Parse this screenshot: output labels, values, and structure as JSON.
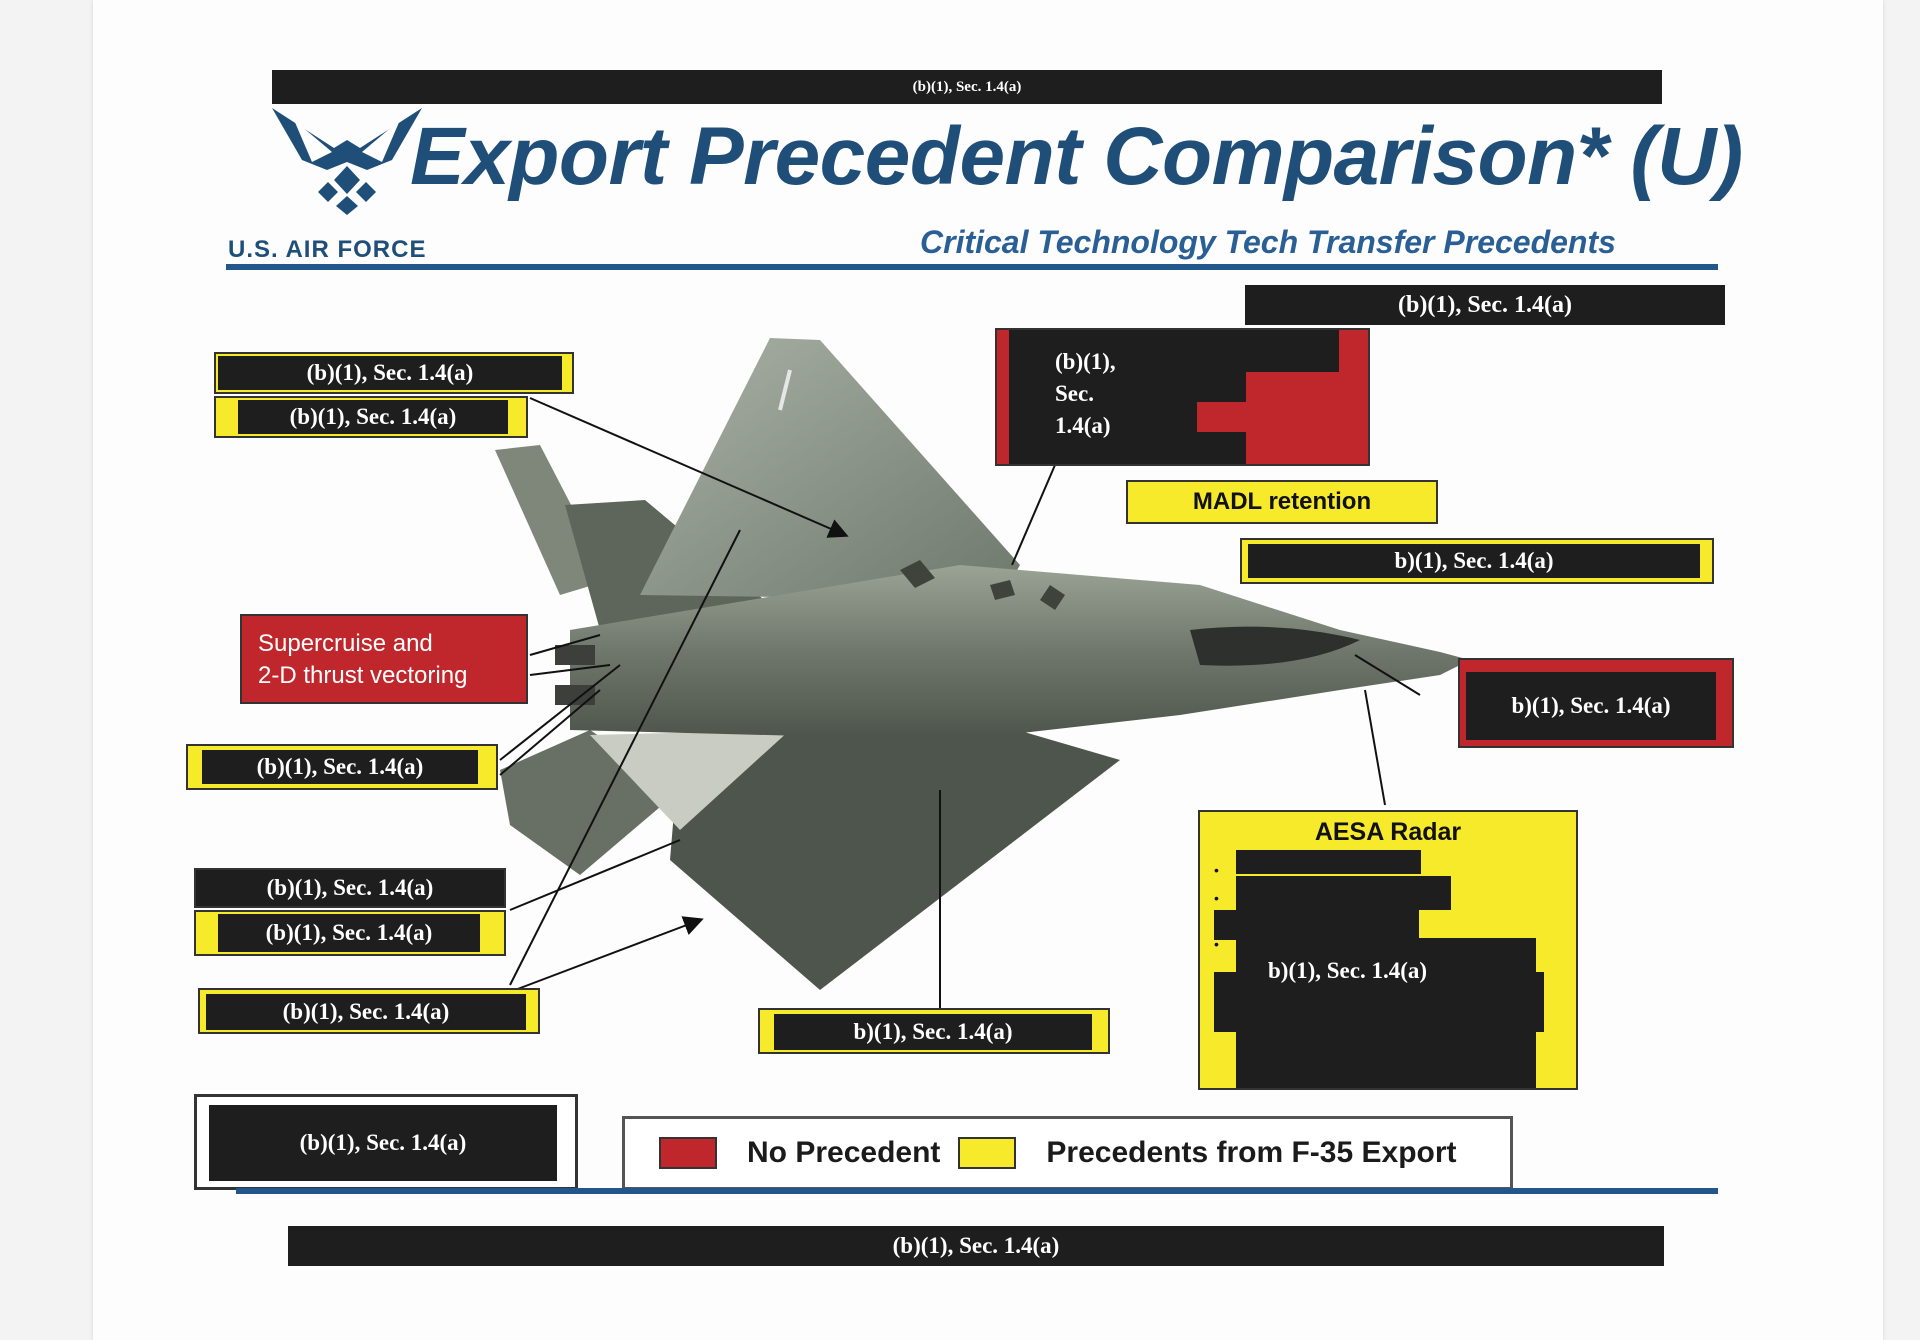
{
  "header": {
    "top_redaction": "(b)(1), Sec. 1.4(a)",
    "title": "Export Precedent Comparison* (U)",
    "subtitle": "Critical Technology Tech Transfer Precedents",
    "org": "U.S. AIR FORCE"
  },
  "callouts": {
    "top_right": "(b)(1), Sec. 1.4(a)",
    "wing_1": "(b)(1), Sec. 1.4(a)",
    "wing_2": "(b)(1), Sec. 1.4(a)",
    "red_top": "(b)(1),\nSec.\n1.4(a)",
    "madl": "MADL retention",
    "right_mid": "b)(1), Sec. 1.4(a)",
    "supercruise": "Supercruise and\n2-D thrust vectoring",
    "nose": "b)(1), Sec. 1.4(a)",
    "left_mid": "(b)(1), Sec. 1.4(a)",
    "aesa_title": "AESA Radar",
    "aesa_body": "b)(1), Sec. 1.4(a)",
    "lower_1": "(b)(1), Sec. 1.4(a)",
    "lower_2": "(b)(1), Sec. 1.4(a)",
    "lower_3": "(b)(1), Sec. 1.4(a)",
    "center_bottom": "b)(1), Sec. 1.4(a)",
    "bottom_left": "(b)(1), Sec. 1.4(a)"
  },
  "legend": {
    "no_precedent": "No Precedent",
    "f35": "Precedents from F-35 Export",
    "colors": {
      "no_precedent": "#c0272d",
      "f35": "#f7ea2a"
    }
  },
  "footer": {
    "bottom_redaction": "(b)(1), Sec. 1.4(a)"
  }
}
